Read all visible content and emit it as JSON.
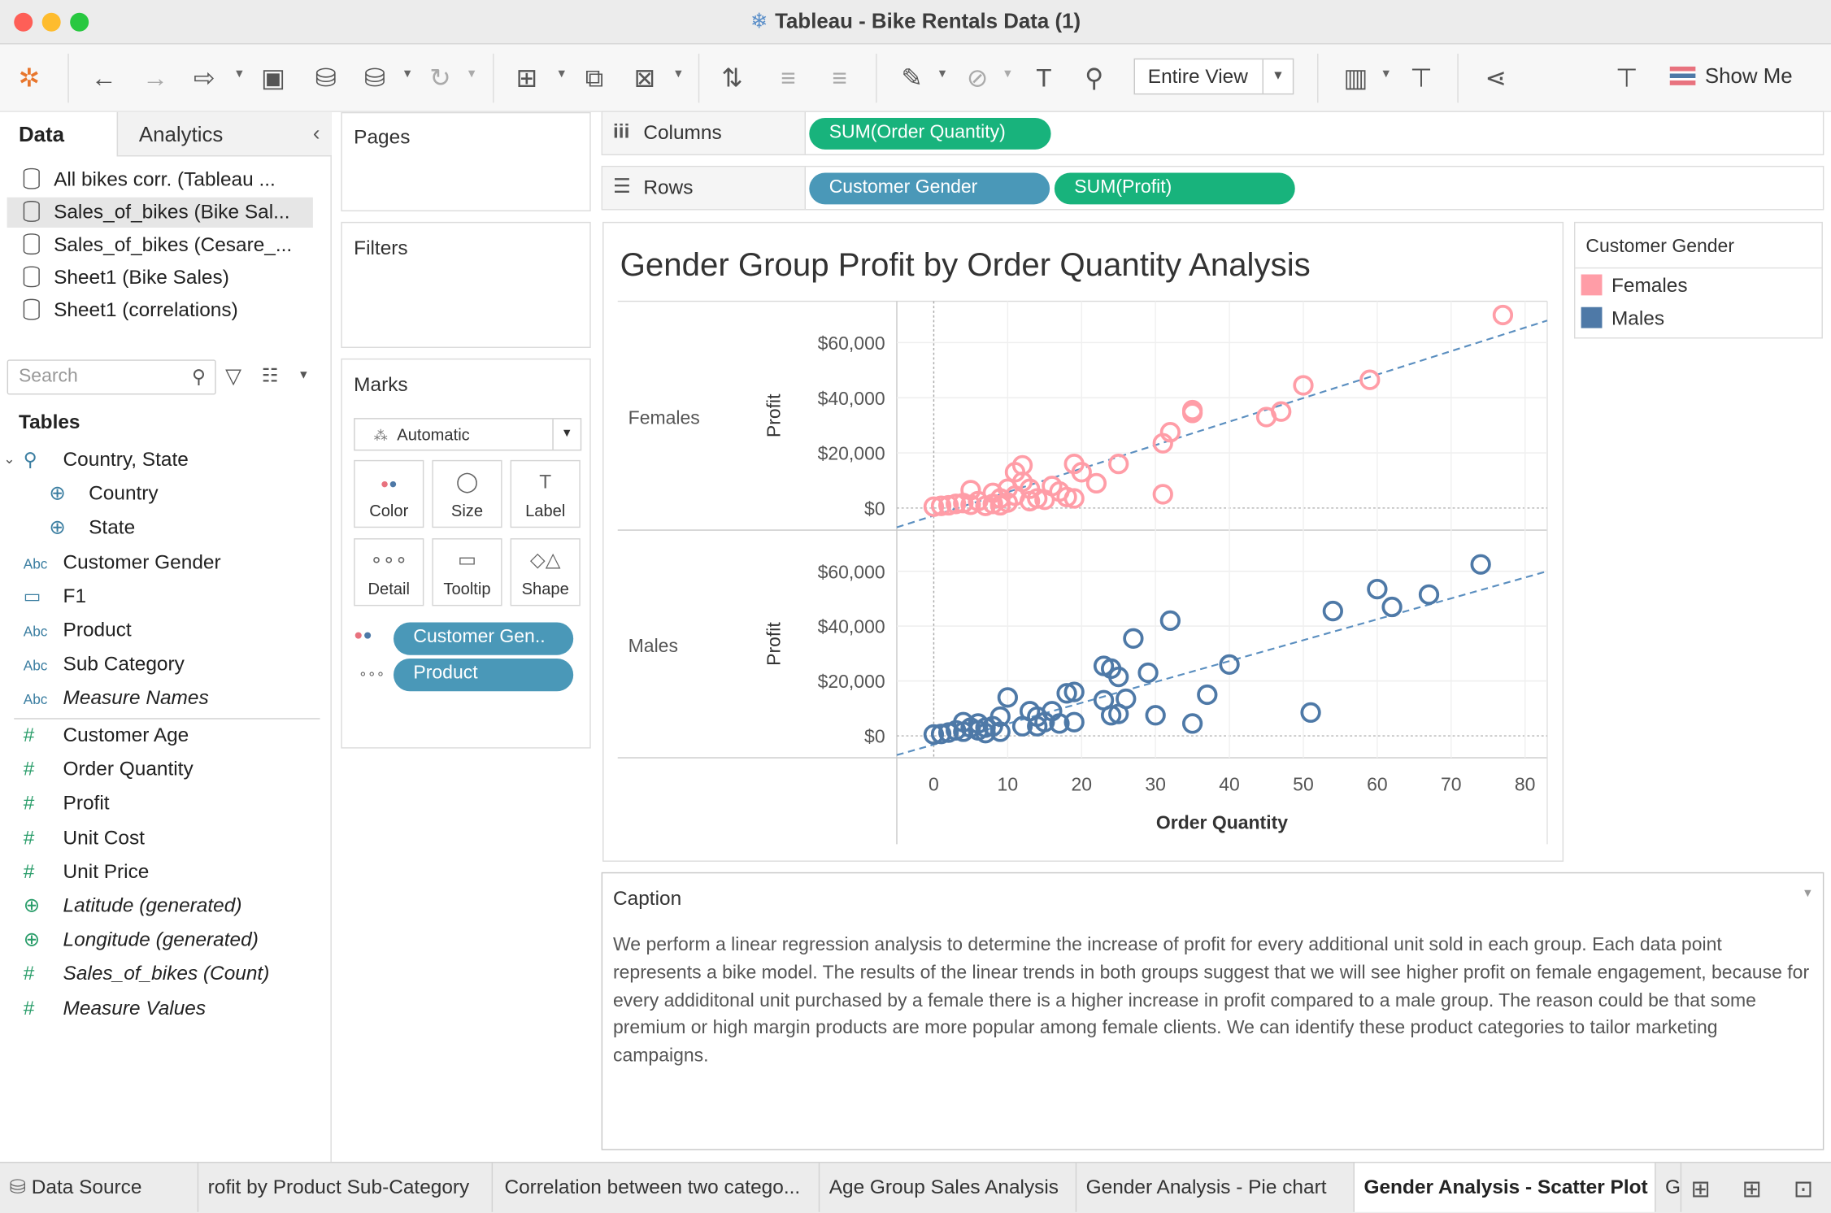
{
  "window": {
    "title": "Tableau - Bike Rentals Data (1)"
  },
  "toolbar": {
    "fit_select": "Entire View",
    "show_me": "Show Me"
  },
  "data_pane": {
    "tabs": [
      "Data",
      "Analytics"
    ],
    "sources": [
      "All bikes corr.  (Tableau ...",
      "Sales_of_bikes (Bike Sal...",
      "Sales_of_bikes (Cesare_...",
      "Sheet1 (Bike Sales)",
      "Sheet1 (correlations)"
    ],
    "search_placeholder": "Search",
    "tables_header": "Tables",
    "dimensions": [
      {
        "icon": "hierarchy",
        "label": "Country, State",
        "italic": false
      },
      {
        "icon": "globe",
        "label": "Country",
        "italic": false
      },
      {
        "icon": "globe",
        "label": "State",
        "italic": false
      },
      {
        "icon": "Abc",
        "label": "Customer Gender",
        "italic": false
      },
      {
        "icon": "calendar",
        "label": "F1",
        "italic": false
      },
      {
        "icon": "Abc",
        "label": "Product",
        "italic": false
      },
      {
        "icon": "Abc",
        "label": "Sub Category",
        "italic": false
      },
      {
        "icon": "Abc",
        "label": "Measure Names",
        "italic": true
      }
    ],
    "measures": [
      {
        "icon": "#",
        "label": "Customer Age",
        "italic": false
      },
      {
        "icon": "#",
        "label": "Order Quantity",
        "italic": false
      },
      {
        "icon": "#",
        "label": "Profit",
        "italic": false
      },
      {
        "icon": "#",
        "label": "Unit Cost",
        "italic": false
      },
      {
        "icon": "#",
        "label": "Unit Price",
        "italic": false
      },
      {
        "icon": "globe",
        "label": "Latitude (generated)",
        "italic": true
      },
      {
        "icon": "globe",
        "label": "Longitude (generated)",
        "italic": true
      },
      {
        "icon": "#",
        "label": "Sales_of_bikes (Count)",
        "italic": true
      },
      {
        "icon": "#",
        "label": "Measure Values",
        "italic": true
      }
    ]
  },
  "cards": {
    "pages": "Pages",
    "filters": "Filters",
    "marks": "Marks"
  },
  "marks": {
    "type": "Automatic",
    "buttons": [
      "Color",
      "Size",
      "Label",
      "Detail",
      "Tooltip",
      "Shape"
    ],
    "pills": [
      "Customer Gen..",
      "Product"
    ]
  },
  "shelves": {
    "columns_label": "Columns",
    "rows_label": "Rows",
    "columns_pills": [
      "SUM(Order Quantity)"
    ],
    "rows_pills": [
      "Customer Gender",
      "SUM(Profit)"
    ]
  },
  "legend": {
    "title": "Customer Gender",
    "items": [
      {
        "label": "Females",
        "color": "#ff9da7"
      },
      {
        "label": "Males",
        "color": "#4e79a7"
      }
    ]
  },
  "chart_data": {
    "type": "scatter",
    "title": "Gender Group Profit by Order Quantity Analysis",
    "xlabel": "Order Quantity",
    "ylabel": "Profit",
    "xlim": [
      -5,
      83
    ],
    "ylim": [
      -8000,
      75000
    ],
    "x_ticks": [
      "0",
      "10",
      "20",
      "30",
      "40",
      "50",
      "60",
      "70",
      "80"
    ],
    "y_ticks": [
      "$0",
      "$20,000",
      "$40,000",
      "$60,000"
    ],
    "trend_lines": "linear, dashed",
    "series": [
      {
        "name": "Females",
        "color": "#ff9da7",
        "trend": {
          "x0": -5,
          "y0": -7000,
          "x1": 83,
          "y1": 68000
        },
        "points": [
          [
            0,
            500
          ],
          [
            1,
            800
          ],
          [
            2,
            1000
          ],
          [
            3,
            1500
          ],
          [
            4,
            1800
          ],
          [
            5,
            1200
          ],
          [
            5,
            6500
          ],
          [
            6,
            2500
          ],
          [
            7,
            800
          ],
          [
            8,
            1500
          ],
          [
            8,
            5500
          ],
          [
            9,
            3500
          ],
          [
            9,
            1000
          ],
          [
            10,
            7000
          ],
          [
            10,
            2000
          ],
          [
            11,
            4500
          ],
          [
            11,
            13000
          ],
          [
            12,
            15500
          ],
          [
            12,
            9500
          ],
          [
            13,
            2500
          ],
          [
            13,
            7000
          ],
          [
            14,
            3500
          ],
          [
            15,
            3000
          ],
          [
            16,
            8000
          ],
          [
            17,
            6000
          ],
          [
            18,
            4000
          ],
          [
            19,
            16000
          ],
          [
            19,
            3500
          ],
          [
            20,
            13000
          ],
          [
            22,
            9000
          ],
          [
            25,
            16000
          ],
          [
            31,
            5000
          ],
          [
            31,
            23500
          ],
          [
            32,
            27500
          ],
          [
            35,
            34500
          ],
          [
            35,
            35500
          ],
          [
            45,
            33000
          ],
          [
            47,
            35000
          ],
          [
            50,
            44500
          ],
          [
            59,
            46500
          ],
          [
            77,
            70000
          ]
        ]
      },
      {
        "name": "Males",
        "color": "#4e79a7",
        "trend": {
          "x0": -5,
          "y0": -7000,
          "x1": 83,
          "y1": 60000
        },
        "points": [
          [
            0,
            500
          ],
          [
            1,
            700
          ],
          [
            2,
            1200
          ],
          [
            3,
            2000
          ],
          [
            4,
            1500
          ],
          [
            4,
            5000
          ],
          [
            5,
            3000
          ],
          [
            6,
            2000
          ],
          [
            6,
            4500
          ],
          [
            7,
            1000
          ],
          [
            7,
            3000
          ],
          [
            8,
            3500
          ],
          [
            9,
            1500
          ],
          [
            9,
            7000
          ],
          [
            10,
            14000
          ],
          [
            12,
            3500
          ],
          [
            13,
            9000
          ],
          [
            14,
            3500
          ],
          [
            14,
            7000
          ],
          [
            15,
            5000
          ],
          [
            16,
            9000
          ],
          [
            17,
            4500
          ],
          [
            18,
            15500
          ],
          [
            19,
            16000
          ],
          [
            19,
            5000
          ],
          [
            23,
            13000
          ],
          [
            23,
            25500
          ],
          [
            24,
            7500
          ],
          [
            24,
            24500
          ],
          [
            25,
            8000
          ],
          [
            25,
            21500
          ],
          [
            26,
            13500
          ],
          [
            27,
            35500
          ],
          [
            29,
            23000
          ],
          [
            30,
            7500
          ],
          [
            32,
            42000
          ],
          [
            35,
            4500
          ],
          [
            37,
            15000
          ],
          [
            40,
            26000
          ],
          [
            51,
            8500
          ],
          [
            54,
            45500
          ],
          [
            60,
            53500
          ],
          [
            62,
            47000
          ],
          [
            67,
            51500
          ],
          [
            74,
            62500
          ]
        ]
      }
    ]
  },
  "caption": {
    "title": "Caption",
    "text": "We perform a linear regression analysis to determine the increase of profit for every additional unit sold in each group. Each data point represents a bike model. The results of the linear trends in both groups suggest that we will see higher profit on female engagement, because for every addiditonal unit purchased by a female there is a higher increase in profit compared to a male group. The reason could be that some premium or high margin products are more popular among female clients. We can identify these product categories to tailor marketing campaigns."
  },
  "sheet_tabs": [
    {
      "label": "Data Source",
      "active": false
    },
    {
      "label": "rofit by Product Sub-Category",
      "active": false
    },
    {
      "label": "Correlation between two catego...",
      "active": false
    },
    {
      "label": "Age Group Sales Analysis",
      "active": false
    },
    {
      "label": "Gender Analysis  - Pie chart",
      "active": false
    },
    {
      "label": "Gender Analysis - Scatter Plot",
      "active": true
    },
    {
      "label": "G",
      "active": false
    }
  ]
}
